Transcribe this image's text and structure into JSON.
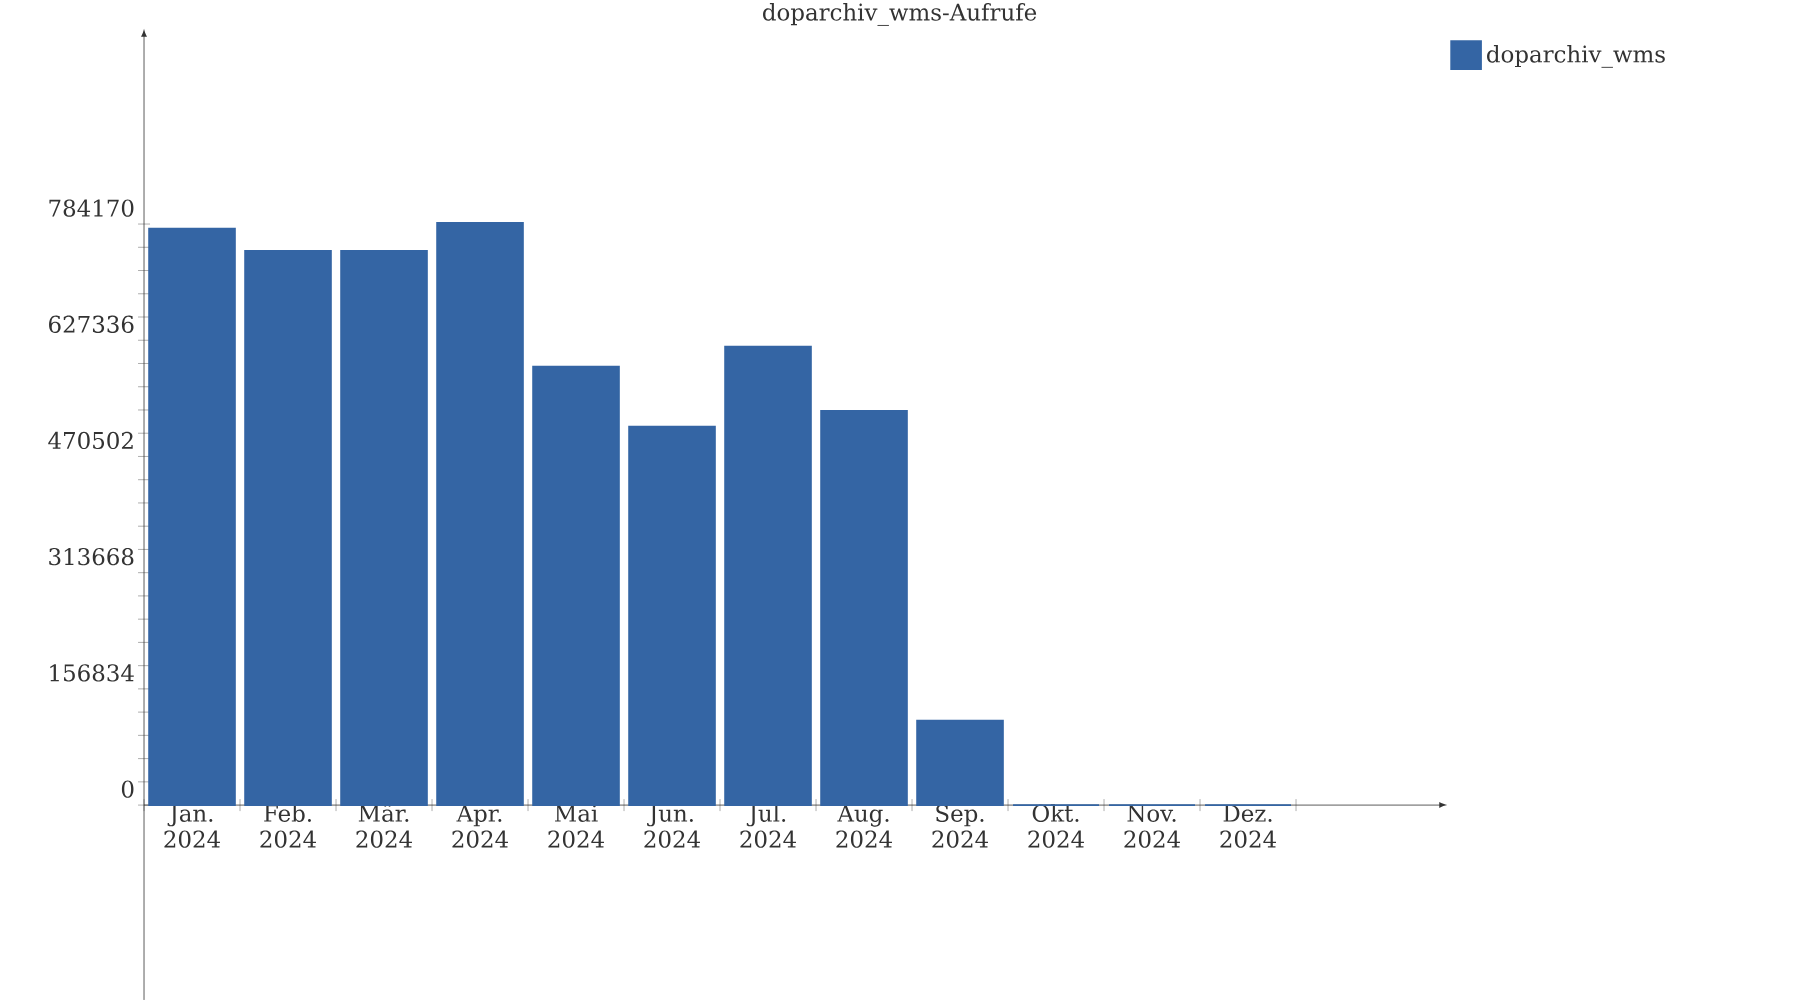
{
  "chart_data": {
    "type": "bar",
    "title": "doparchiv_wms-Aufrufe",
    "categories": [
      "Jan. 2024",
      "Feb. 2024",
      "Mär. 2024",
      "Apr. 2024",
      "Mai 2024",
      "Jun. 2024",
      "Jul. 2024",
      "Aug. 2024",
      "Sep. 2024",
      "Okt. 2024",
      "Nov. 2024",
      "Dez. 2024"
    ],
    "series": [
      {
        "name": "doparchiv_wms",
        "color": "#3465a4",
        "values": [
          778000,
          748000,
          748000,
          786000,
          592000,
          511000,
          619000,
          532000,
          114000,
          0,
          0,
          0
        ]
      }
    ],
    "ylim": [
      -263000,
      1038000
    ],
    "yticks": [
      0,
      156834,
      313668,
      470502,
      627336,
      784170
    ],
    "grid": false,
    "legend": "top right"
  }
}
